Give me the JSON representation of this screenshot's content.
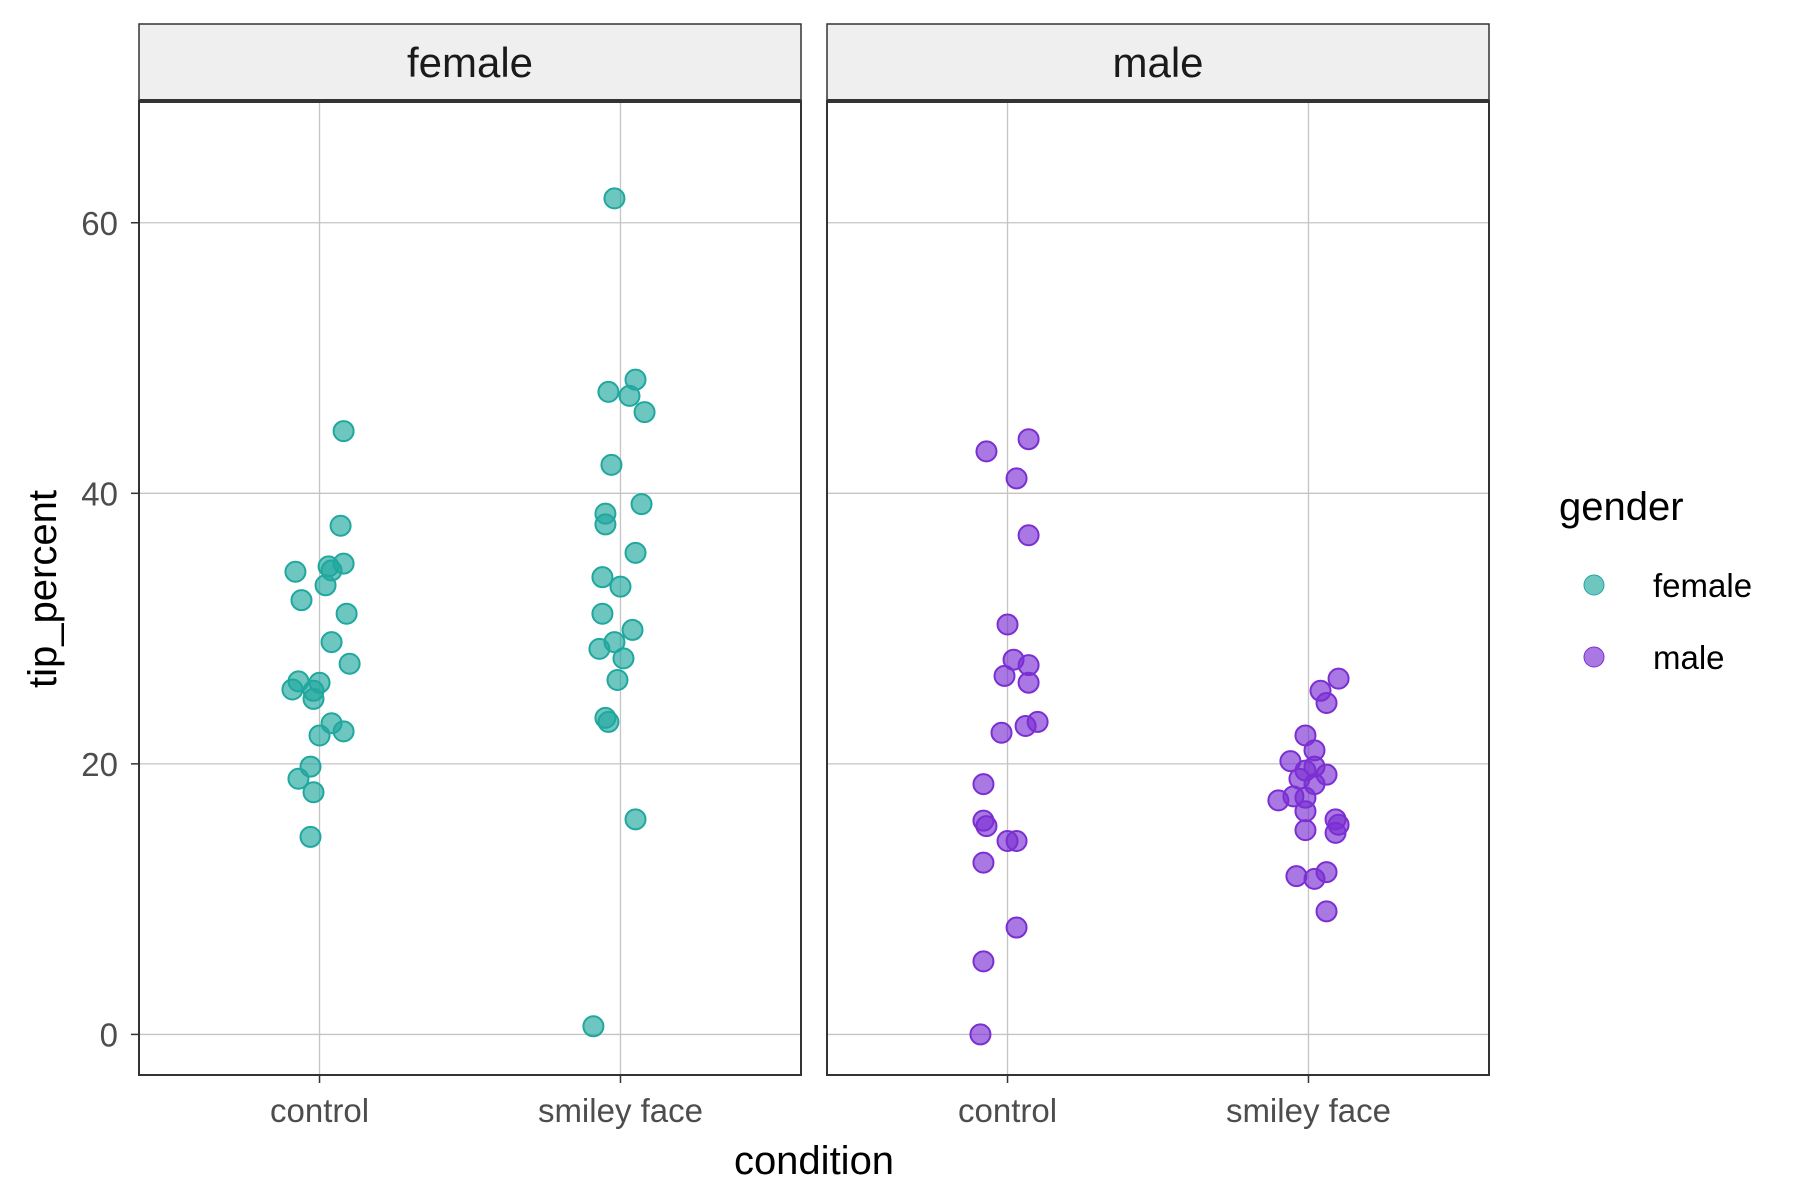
{
  "colors": {
    "female": "#20a79e",
    "male": "#7b2fd3",
    "grid": "#c4c4c4",
    "strip_bg": "#efefef",
    "frame": "#333333"
  },
  "chart_data": {
    "type": "scatter",
    "variant": "jitter, faceted",
    "xlabel": "condition",
    "ylabel": "tip_percent",
    "categories": [
      "control",
      "smiley face"
    ],
    "ylim": [
      -3,
      69
    ],
    "yticks": [
      0,
      20,
      40,
      60
    ],
    "y_tick_labels": [
      "0",
      "20",
      "40",
      "60"
    ],
    "legend": {
      "title": "gender",
      "position": "right",
      "entries": [
        "female",
        "male"
      ]
    },
    "facets": [
      {
        "label": "female",
        "gender": "female",
        "series": [
          {
            "category": "control",
            "points": [
              {
                "jitter": -0.08,
                "y": 34.2
              },
              {
                "jitter": -0.06,
                "y": 32.1
              },
              {
                "jitter": 0.02,
                "y": 33.2
              },
              {
                "jitter": 0.03,
                "y": 34.6
              },
              {
                "jitter": 0.04,
                "y": 34.3
              },
              {
                "jitter": 0.08,
                "y": 34.8
              },
              {
                "jitter": 0.07,
                "y": 37.6
              },
              {
                "jitter": 0.08,
                "y": 44.6
              },
              {
                "jitter": 0.09,
                "y": 31.1
              },
              {
                "jitter": 0.04,
                "y": 29.0
              },
              {
                "jitter": 0.1,
                "y": 27.4
              },
              {
                "jitter": -0.07,
                "y": 26.1
              },
              {
                "jitter": -0.09,
                "y": 25.5
              },
              {
                "jitter": 0.0,
                "y": 26.0
              },
              {
                "jitter": -0.02,
                "y": 25.4
              },
              {
                "jitter": -0.02,
                "y": 24.8
              },
              {
                "jitter": 0.04,
                "y": 23.0
              },
              {
                "jitter": 0.08,
                "y": 22.4
              },
              {
                "jitter": 0.0,
                "y": 22.1
              },
              {
                "jitter": -0.03,
                "y": 19.8
              },
              {
                "jitter": -0.07,
                "y": 18.9
              },
              {
                "jitter": -0.02,
                "y": 17.9
              },
              {
                "jitter": -0.03,
                "y": 14.6
              }
            ]
          },
          {
            "category": "smiley face",
            "points": [
              {
                "jitter": -0.02,
                "y": 61.8
              },
              {
                "jitter": 0.05,
                "y": 48.4
              },
              {
                "jitter": -0.04,
                "y": 47.5
              },
              {
                "jitter": 0.03,
                "y": 47.2
              },
              {
                "jitter": 0.08,
                "y": 46.0
              },
              {
                "jitter": -0.03,
                "y": 42.1
              },
              {
                "jitter": 0.07,
                "y": 39.2
              },
              {
                "jitter": -0.05,
                "y": 38.5
              },
              {
                "jitter": -0.05,
                "y": 37.7
              },
              {
                "jitter": 0.05,
                "y": 35.6
              },
              {
                "jitter": -0.06,
                "y": 33.8
              },
              {
                "jitter": 0.0,
                "y": 33.1
              },
              {
                "jitter": -0.06,
                "y": 31.1
              },
              {
                "jitter": 0.04,
                "y": 29.9
              },
              {
                "jitter": -0.02,
                "y": 29.0
              },
              {
                "jitter": -0.07,
                "y": 28.5
              },
              {
                "jitter": 0.01,
                "y": 27.8
              },
              {
                "jitter": -0.01,
                "y": 26.2
              },
              {
                "jitter": -0.05,
                "y": 23.4
              },
              {
                "jitter": -0.04,
                "y": 23.1
              },
              {
                "jitter": 0.05,
                "y": 15.9
              },
              {
                "jitter": -0.09,
                "y": 0.6
              }
            ]
          }
        ]
      },
      {
        "label": "male",
        "gender": "male",
        "series": [
          {
            "category": "control",
            "points": [
              {
                "jitter": -0.07,
                "y": 43.1
              },
              {
                "jitter": 0.07,
                "y": 44.0
              },
              {
                "jitter": 0.03,
                "y": 41.1
              },
              {
                "jitter": 0.07,
                "y": 36.9
              },
              {
                "jitter": 0.0,
                "y": 30.3
              },
              {
                "jitter": 0.02,
                "y": 27.7
              },
              {
                "jitter": 0.07,
                "y": 27.3
              },
              {
                "jitter": -0.01,
                "y": 26.5
              },
              {
                "jitter": 0.07,
                "y": 26.0
              },
              {
                "jitter": 0.1,
                "y": 23.1
              },
              {
                "jitter": 0.06,
                "y": 22.8
              },
              {
                "jitter": -0.02,
                "y": 22.3
              },
              {
                "jitter": -0.08,
                "y": 18.5
              },
              {
                "jitter": -0.08,
                "y": 15.8
              },
              {
                "jitter": -0.07,
                "y": 15.4
              },
              {
                "jitter": 0.0,
                "y": 14.3
              },
              {
                "jitter": 0.03,
                "y": 14.3
              },
              {
                "jitter": -0.08,
                "y": 12.7
              },
              {
                "jitter": 0.03,
                "y": 7.9
              },
              {
                "jitter": -0.08,
                "y": 5.4
              },
              {
                "jitter": -0.09,
                "y": 0.0
              }
            ]
          },
          {
            "category": "smiley face",
            "points": [
              {
                "jitter": 0.1,
                "y": 26.3
              },
              {
                "jitter": 0.04,
                "y": 25.4
              },
              {
                "jitter": 0.06,
                "y": 24.5
              },
              {
                "jitter": -0.01,
                "y": 22.1
              },
              {
                "jitter": 0.02,
                "y": 21.0
              },
              {
                "jitter": -0.06,
                "y": 20.2
              },
              {
                "jitter": 0.02,
                "y": 19.8
              },
              {
                "jitter": -0.01,
                "y": 19.5
              },
              {
                "jitter": 0.06,
                "y": 19.2
              },
              {
                "jitter": -0.03,
                "y": 18.9
              },
              {
                "jitter": 0.02,
                "y": 18.5
              },
              {
                "jitter": -0.05,
                "y": 17.6
              },
              {
                "jitter": -0.01,
                "y": 17.5
              },
              {
                "jitter": -0.1,
                "y": 17.3
              },
              {
                "jitter": -0.01,
                "y": 16.5
              },
              {
                "jitter": 0.09,
                "y": 15.9
              },
              {
                "jitter": 0.1,
                "y": 15.5
              },
              {
                "jitter": 0.09,
                "y": 14.9
              },
              {
                "jitter": -0.01,
                "y": 15.1
              },
              {
                "jitter": 0.06,
                "y": 12.0
              },
              {
                "jitter": -0.04,
                "y": 11.7
              },
              {
                "jitter": 0.02,
                "y": 11.5
              },
              {
                "jitter": 0.06,
                "y": 9.1
              }
            ]
          }
        ]
      }
    ]
  }
}
